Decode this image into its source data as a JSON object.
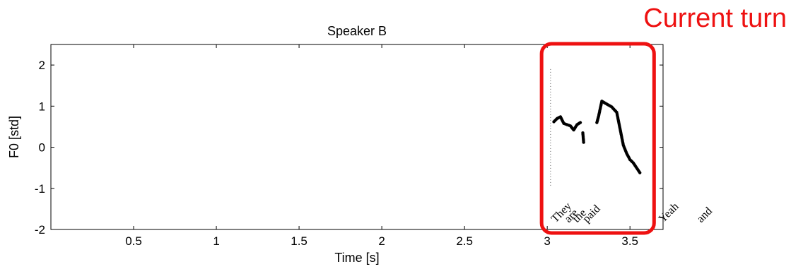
{
  "annotation": {
    "label": "Current turn",
    "color": "#ee1111",
    "x_range": [
      3.0,
      3.68
    ]
  },
  "chart_data": {
    "type": "scatter",
    "title": "Speaker B",
    "xlabel": "Time [s]",
    "ylabel": "F0 [std]",
    "xlim": [
      0,
      3.7
    ],
    "ylim": [
      -2,
      2.5
    ],
    "xticks": [
      0.5,
      1,
      1.5,
      2,
      2.5,
      3,
      3.5
    ],
    "xtick_labels": [
      "0.5",
      "1",
      "1.5",
      "2",
      "2.5",
      "3",
      "3.5"
    ],
    "yticks": [
      -2,
      -1,
      0,
      1,
      2
    ],
    "ytick_labels": [
      "-2",
      "-1",
      "0",
      "1",
      "2"
    ],
    "grid": false,
    "word_boundary_x": 3.02,
    "words": [
      {
        "text": "They",
        "t": 3.05
      },
      {
        "text": "are",
        "t": 3.13
      },
      {
        "text": "the",
        "t": 3.18
      },
      {
        "text": "paid",
        "t": 3.24
      },
      {
        "text": "Yeah",
        "t": 3.7
      },
      {
        "text": "and",
        "t": 3.93
      }
    ],
    "segments": [
      {
        "x": [
          3.04,
          3.06,
          3.08,
          3.1,
          3.12,
          3.14,
          3.16,
          3.18,
          3.2
        ],
        "y": [
          0.62,
          0.7,
          0.74,
          0.58,
          0.55,
          0.52,
          0.42,
          0.55,
          0.6
        ]
      },
      {
        "x": [
          3.215,
          3.22
        ],
        "y": [
          0.35,
          0.12
        ]
      },
      {
        "x": [
          3.3,
          3.31,
          3.33,
          3.36,
          3.39,
          3.42,
          3.44,
          3.46,
          3.48,
          3.5,
          3.52,
          3.54,
          3.56
        ],
        "y": [
          0.6,
          0.75,
          1.12,
          1.05,
          0.98,
          0.85,
          0.45,
          0.05,
          -0.15,
          -0.3,
          -0.38,
          -0.5,
          -0.62
        ]
      }
    ]
  }
}
